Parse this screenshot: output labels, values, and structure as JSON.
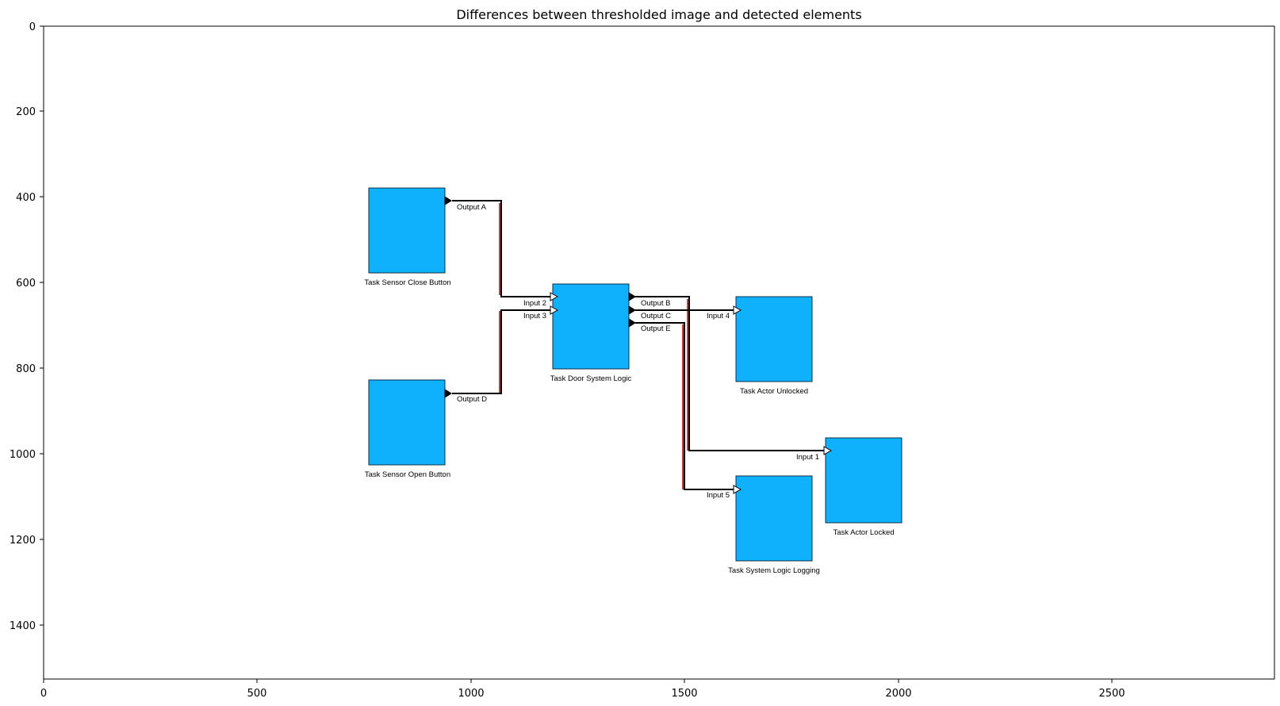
{
  "title": "Differences between thresholded image and detected elements",
  "x_ticks": [
    "0",
    "500",
    "1000",
    "1500",
    "2000",
    "2500"
  ],
  "y_ticks": [
    "0",
    "200",
    "400",
    "600",
    "800",
    "1000",
    "1200",
    "1400"
  ],
  "colors": {
    "block_fill": "#10b1fc",
    "block_stroke": "#0a2f45",
    "wire": "#000000",
    "wire_diff": "#b00000",
    "port_open": "#ffffff"
  },
  "blocks": [
    {
      "id": "close_btn",
      "label": "Task Sensor Close Button"
    },
    {
      "id": "open_btn",
      "label": "Task Sensor Open Button"
    },
    {
      "id": "logic",
      "label": "Task Door System Logic"
    },
    {
      "id": "unlocked",
      "label": "Task Actor Unlocked"
    },
    {
      "id": "locked",
      "label": "Task Actor Locked"
    },
    {
      "id": "logging",
      "label": "Task System Logic Logging"
    }
  ],
  "ports": {
    "output_a": "Output A",
    "output_d": "Output D",
    "input_2": "Input 2",
    "input_3": "Input 3",
    "output_b": "Output B",
    "output_c": "Output C",
    "output_e": "Output E",
    "input_4": "Input 4",
    "input_1": "Input 1",
    "input_5": "Input 5"
  }
}
